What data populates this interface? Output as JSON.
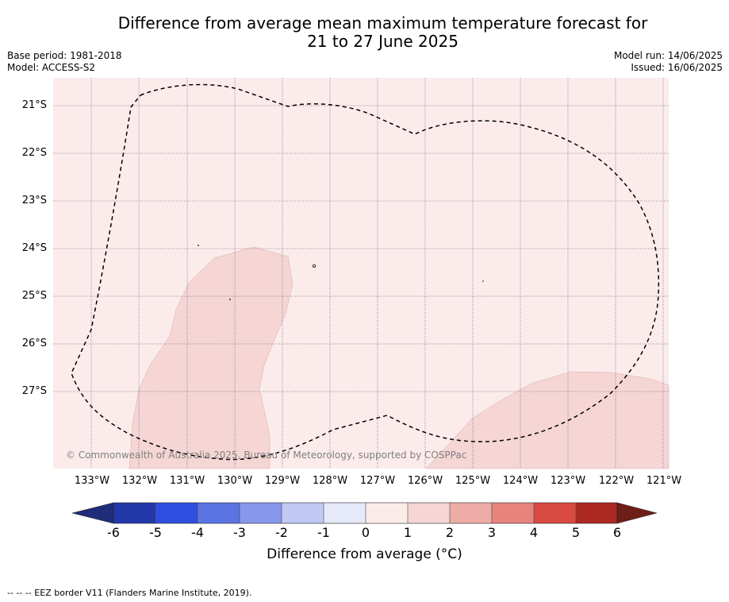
{
  "title_line1": "Difference from average mean maximum temperature forecast for",
  "title_line2": "21 to 27 June 2025",
  "base_period": "Base period: 1981-2018",
  "model": "Model: ACCESS-S2",
  "model_run": "Model run: 14/06/2025",
  "issued": "Issued: 16/06/2025",
  "latitude_labels": [
    "21°S",
    "22°S",
    "23°S",
    "24°S",
    "25°S",
    "26°S",
    "27°S"
  ],
  "longitude_labels": [
    "133°W",
    "132°W",
    "131°W",
    "130°W",
    "129°W",
    "128°W",
    "127°W",
    "126°W",
    "125°W",
    "124°W",
    "123°W",
    "122°W",
    "121°W"
  ],
  "copyright": "© Commonwealth of Australia 2025, Bureau of Meteorology, supported by COSPPac",
  "colorbar": {
    "ticks": [
      "-6",
      "-5",
      "-4",
      "-3",
      "-2",
      "-1",
      "0",
      "1",
      "2",
      "3",
      "4",
      "5",
      "6"
    ],
    "label": "Difference from average (°C)",
    "colors": {
      "extend_low": "#1f2d7a",
      "bins": [
        "#2238a8",
        "#2f4fe0",
        "#5a74e4",
        "#8797ec",
        "#c0c8f4",
        "#e6e9fa",
        "#fbecea",
        "#f5d6d5",
        "#eeaca7",
        "#e6847c",
        "#d84a40",
        "#ab2920"
      ],
      "extend_high": "#6e1e17"
    }
  },
  "map": {
    "background_color": "#fbeceb",
    "anomaly_1_to_2_color": "#f5d6d5",
    "gridline_style": "dotted"
  },
  "footnote": "--  --  -- EEZ border V11 (Flanders Marine Institute, 2019)."
}
